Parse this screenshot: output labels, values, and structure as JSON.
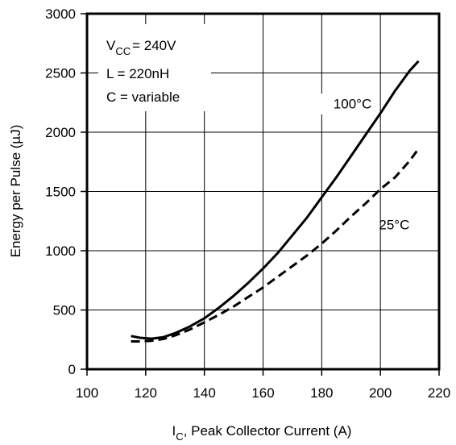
{
  "chart_data": {
    "type": "line",
    "title": "",
    "xlabel": "I",
    "xlabel_subscript": "C",
    "xlabel_rest": ", Peak Collector Current (A)",
    "ylabel": "Energy per Pulse (µJ)",
    "xlim": [
      100,
      220
    ],
    "ylim": [
      0,
      3000
    ],
    "xticks": [
      100,
      120,
      140,
      160,
      180,
      200,
      220
    ],
    "yticks": [
      0,
      500,
      1000,
      1500,
      2000,
      2500,
      3000
    ],
    "grid": true,
    "legend": "none",
    "conditions": {
      "vcc_main": "V",
      "vcc_sub": "CC",
      "vcc_rest": "= 240V",
      "inductance": "L = 220nH",
      "capacitance": "C = variable"
    },
    "series": [
      {
        "name": "100°C",
        "style": "solid",
        "color": "#000000",
        "x": [
          115,
          118,
          122,
          126,
          130,
          135,
          140,
          145,
          150,
          155,
          160,
          165,
          170,
          175,
          180,
          185,
          190,
          195,
          200,
          205,
          210,
          213
        ],
        "y": [
          280,
          265,
          258,
          270,
          305,
          360,
          430,
          520,
          620,
          730,
          850,
          980,
          1130,
          1280,
          1450,
          1620,
          1800,
          1980,
          2160,
          2350,
          2520,
          2600
        ]
      },
      {
        "name": "25°C",
        "style": "dashed",
        "color": "#000000",
        "x": [
          115,
          118,
          122,
          126,
          130,
          135,
          140,
          145,
          150,
          155,
          160,
          165,
          170,
          175,
          180,
          185,
          190,
          195,
          200,
          205,
          210,
          213
        ],
        "y": [
          235,
          235,
          240,
          255,
          285,
          335,
          395,
          460,
          530,
          610,
          690,
          780,
          870,
          960,
          1060,
          1170,
          1290,
          1400,
          1520,
          1620,
          1760,
          1860
        ]
      }
    ],
    "series_labels": [
      {
        "text": "100°C",
        "x": 197,
        "y": 2200
      },
      {
        "text": "25°C",
        "x": 205,
        "y": 1180
      }
    ]
  }
}
